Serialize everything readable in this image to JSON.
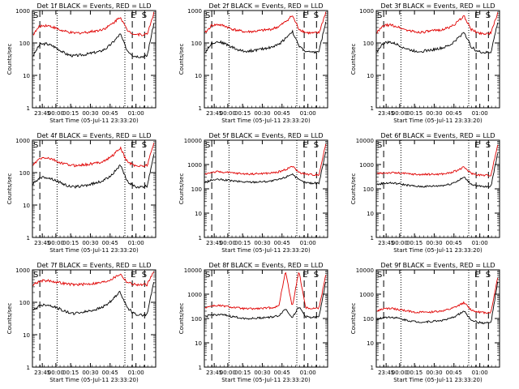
{
  "chart_data": [
    {
      "type": "line",
      "title": "Det 1f BLACK = Events, RED = LLD",
      "xlabel": "Start Time (05-Jul-11 23:33:20)",
      "ylabel": "Counts/sec",
      "ylim": [
        1,
        1000
      ],
      "yscale": "log",
      "x_ticks": [
        "23:45",
        "00:00",
        "00:15",
        "00:30",
        "00:45",
        "01:00"
      ],
      "y_ticks": [
        "1",
        "10",
        "100",
        "1000"
      ],
      "markers": [
        "S",
        "E",
        "S"
      ],
      "series": [
        {
          "color": "#000000",
          "values": [
            40,
            90,
            95,
            80,
            60,
            45,
            40,
            42,
            45,
            50,
            55,
            70,
            110,
            190,
            60,
            40,
            38,
            40,
            400
          ]
        },
        {
          "color": "#e00000",
          "values": [
            180,
            330,
            350,
            310,
            250,
            220,
            200,
            205,
            215,
            230,
            250,
            300,
            420,
            650,
            250,
            190,
            180,
            185,
            850
          ]
        }
      ]
    },
    {
      "type": "line",
      "title": "Det 2f BLACK = Events, RED = LLD",
      "xlabel": "Start Time (05-Jul-11 23:33:20)",
      "ylabel": "Counts/sec",
      "ylim": [
        1,
        1000
      ],
      "yscale": "log",
      "x_ticks": [
        "23:45",
        "00:00",
        "00:15",
        "00:30",
        "00:45",
        "01:00"
      ],
      "y_ticks": [
        "1",
        "10",
        "100",
        "1000"
      ],
      "markers": [
        "S",
        "E",
        "S"
      ],
      "series": [
        {
          "color": "#000000",
          "values": [
            50,
            100,
            110,
            95,
            75,
            60,
            55,
            58,
            62,
            68,
            75,
            90,
            140,
            230,
            80,
            55,
            50,
            55,
            450
          ]
        },
        {
          "color": "#e00000",
          "values": [
            200,
            350,
            370,
            330,
            270,
            240,
            220,
            225,
            235,
            250,
            270,
            320,
            450,
            700,
            270,
            210,
            200,
            205,
            880
          ]
        }
      ]
    },
    {
      "type": "line",
      "title": "Det 3f BLACK = Events, RED = LLD",
      "xlabel": "Start Time (05-Jul-11 23:33:20)",
      "ylabel": "Counts/sec",
      "ylim": [
        1,
        1000
      ],
      "yscale": "log",
      "x_ticks": [
        "23:45",
        "00:00",
        "00:15",
        "00:30",
        "00:45",
        "01:00"
      ],
      "y_ticks": [
        "1",
        "10",
        "100",
        "1000"
      ],
      "markers": [
        "S",
        "E",
        "S"
      ],
      "series": [
        {
          "color": "#000000",
          "values": [
            55,
            100,
            105,
            90,
            72,
            60,
            55,
            57,
            60,
            66,
            72,
            88,
            135,
            220,
            78,
            55,
            50,
            52,
            430
          ]
        },
        {
          "color": "#e00000",
          "values": [
            210,
            340,
            360,
            320,
            265,
            235,
            215,
            220,
            230,
            245,
            265,
            315,
            440,
            680,
            265,
            205,
            195,
            200,
            860
          ]
        }
      ]
    },
    {
      "type": "line",
      "title": "Det 4f BLACK = Events, RED = LLD",
      "xlabel": "Start Time (05-Jul-11 23:33:20)",
      "ylabel": "Counts/sec",
      "ylim": [
        1,
        1000
      ],
      "yscale": "log",
      "x_ticks": [
        "23:45",
        "00:00",
        "00:15",
        "00:30",
        "00:45",
        "01:00"
      ],
      "y_ticks": [
        "1",
        "10",
        "100",
        "1000"
      ],
      "markers": [
        "S",
        "E",
        "S"
      ],
      "series": [
        {
          "color": "#000000",
          "values": [
            45,
            70,
            72,
            62,
            50,
            40,
            36,
            38,
            41,
            46,
            52,
            65,
            100,
            170,
            55,
            38,
            35,
            38,
            380
          ]
        },
        {
          "color": "#e00000",
          "values": [
            170,
            270,
            290,
            250,
            200,
            180,
            165,
            170,
            178,
            190,
            210,
            250,
            360,
            580,
            220,
            170,
            160,
            165,
            820
          ]
        }
      ]
    },
    {
      "type": "line",
      "title": "Det 5f BLACK = Events, RED = LLD",
      "xlabel": "Start Time (05-Jul-11 23:33:20)",
      "ylabel": "Counts/sec",
      "ylim": [
        1,
        10000
      ],
      "yscale": "log",
      "x_ticks": [
        "23:45",
        "00:00",
        "00:15",
        "00:30",
        "00:45",
        "01:00"
      ],
      "y_ticks": [
        "1",
        "10",
        "100",
        "1000",
        "10000"
      ],
      "markers": [
        "S",
        "E",
        "S"
      ],
      "series": [
        {
          "color": "#000000",
          "values": [
            180,
            230,
            240,
            230,
            215,
            200,
            190,
            190,
            195,
            200,
            210,
            240,
            300,
            420,
            230,
            180,
            170,
            175,
            3500
          ]
        },
        {
          "color": "#e00000",
          "values": [
            400,
            480,
            500,
            480,
            450,
            430,
            410,
            410,
            420,
            430,
            450,
            500,
            620,
            850,
            480,
            400,
            380,
            390,
            7000
          ]
        }
      ]
    },
    {
      "type": "line",
      "title": "Det 6f BLACK = Events, RED = LLD",
      "xlabel": "Start Time (05-Jul-11 23:33:20)",
      "ylabel": "Counts/sec",
      "ylim": [
        1,
        10000
      ],
      "yscale": "log",
      "x_ticks": [
        "23:45",
        "00:00",
        "00:15",
        "00:30",
        "00:45",
        "01:00"
      ],
      "y_ticks": [
        "1",
        "10",
        "100",
        "1000",
        "10000"
      ],
      "markers": [
        "S",
        "E",
        "S"
      ],
      "series": [
        {
          "color": "#000000",
          "values": [
            150,
            170,
            175,
            165,
            150,
            135,
            125,
            125,
            128,
            132,
            140,
            160,
            210,
            300,
            160,
            130,
            120,
            125,
            3000
          ]
        },
        {
          "color": "#e00000",
          "values": [
            420,
            450,
            460,
            450,
            430,
            410,
            390,
            390,
            395,
            400,
            415,
            460,
            580,
            780,
            440,
            380,
            360,
            370,
            6500
          ]
        }
      ]
    },
    {
      "type": "line",
      "title": "Det 7f BLACK = Events, RED = LLD",
      "xlabel": "Start Time (05-Jul-11 23:33:20)",
      "ylabel": "Counts/sec",
      "ylim": [
        1,
        1000
      ],
      "yscale": "log",
      "x_ticks": [
        "23:45",
        "00:00",
        "00:15",
        "00:30",
        "00:45",
        "01:00"
      ],
      "y_ticks": [
        "1",
        "10",
        "100",
        "1000"
      ],
      "markers": [
        "S",
        "E",
        "S"
      ],
      "series": [
        {
          "color": "#000000",
          "values": [
            55,
            80,
            85,
            75,
            62,
            50,
            45,
            48,
            52,
            58,
            66,
            85,
            130,
            210,
            70,
            45,
            40,
            42,
            450
          ]
        },
        {
          "color": "#e00000",
          "values": [
            350,
            450,
            470,
            440,
            400,
            370,
            350,
            355,
            365,
            380,
            400,
            450,
            560,
            750,
            420,
            360,
            340,
            350,
            900
          ]
        }
      ]
    },
    {
      "type": "line",
      "title": "Det 8f BLACK = Events, RED = LLD",
      "xlabel": "Start Time (05-Jul-11 23:33:20)",
      "ylabel": "Counts/sec",
      "ylim": [
        1,
        10000
      ],
      "yscale": "log",
      "x_ticks": [
        "23:45",
        "00:00",
        "00:15",
        "00:30",
        "00:45",
        "01:00"
      ],
      "y_ticks": [
        "1",
        "10",
        "100",
        "1000",
        "10000"
      ],
      "markers": [
        "S",
        "E",
        "S"
      ],
      "series": [
        {
          "color": "#000000",
          "values": [
            120,
            140,
            145,
            135,
            120,
            110,
            100,
            100,
            105,
            110,
            115,
            130,
            250,
            110,
            300,
            120,
            110,
            115,
            3500
          ]
        },
        {
          "color": "#e00000",
          "values": [
            280,
            330,
            340,
            320,
            290,
            270,
            250,
            250,
            255,
            265,
            280,
            320,
            9000,
            300,
            9000,
            280,
            260,
            270,
            6500
          ]
        }
      ]
    },
    {
      "type": "line",
      "title": "Det 9f BLACK = Events, RED = LLD",
      "xlabel": "Start Time (05-Jul-11 23:33:20)",
      "ylabel": "Counts/sec",
      "ylim": [
        1,
        10000
      ],
      "yscale": "log",
      "x_ticks": [
        "23:45",
        "00:00",
        "00:15",
        "00:30",
        "00:45",
        "01:00"
      ],
      "y_ticks": [
        "1",
        "10",
        "100",
        "1000",
        "10000"
      ],
      "markers": [
        "S",
        "E",
        "S"
      ],
      "series": [
        {
          "color": "#000000",
          "values": [
            90,
            110,
            115,
            105,
            90,
            80,
            72,
            72,
            75,
            80,
            86,
            100,
            140,
            200,
            90,
            70,
            65,
            68,
            3000
          ]
        },
        {
          "color": "#e00000",
          "values": [
            200,
            250,
            260,
            240,
            215,
            195,
            180,
            180,
            185,
            195,
            210,
            245,
            320,
            450,
            230,
            185,
            175,
            180,
            5000
          ]
        }
      ]
    }
  ]
}
